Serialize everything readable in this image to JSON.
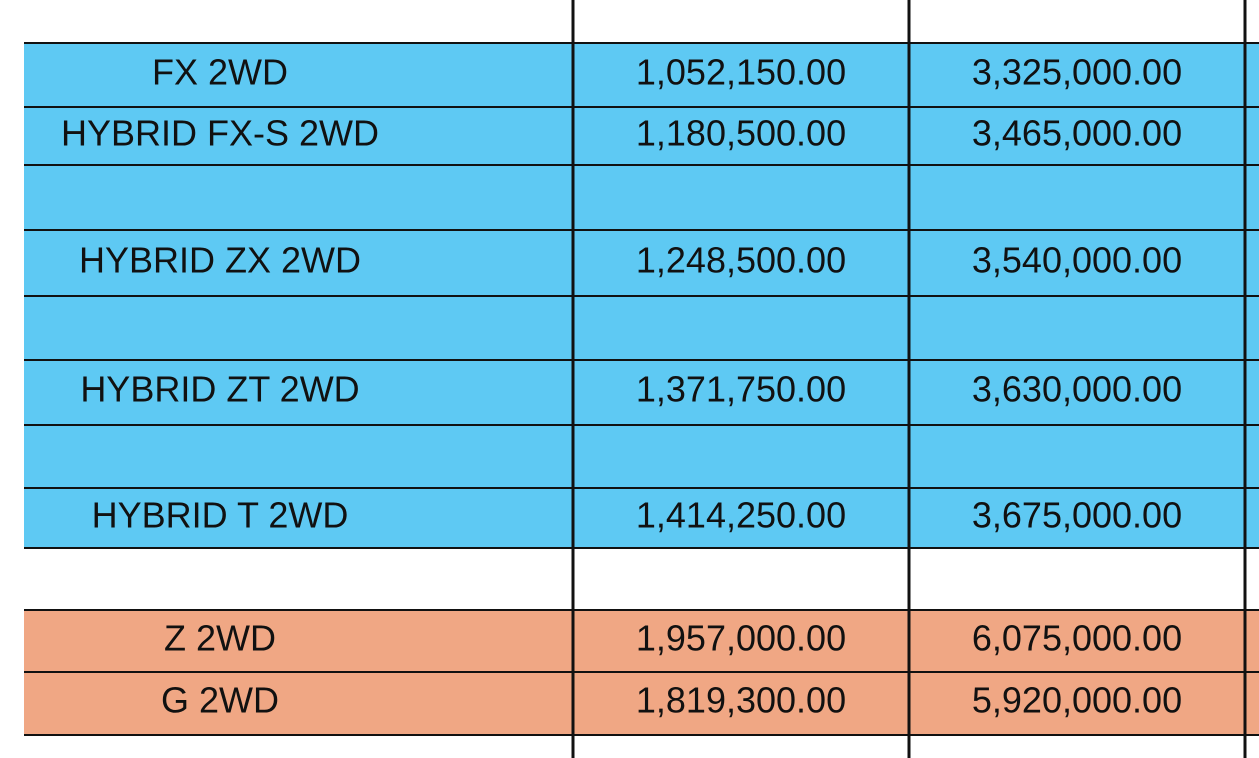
{
  "table": {
    "rows": [
      [
        "FX 2WD",
        "1,052,150.00",
        "3,325,000.00"
      ],
      [
        "HYBRID FX-S 2WD",
        "1,180,500.00",
        "3,465,000.00"
      ],
      [
        "HYBRID ZX 2WD",
        "1,248,500.00",
        "3,540,000.00"
      ],
      [
        "HYBRID ZT 2WD",
        "1,371,750.00",
        "3,630,000.00"
      ],
      [
        "HYBRID T 2WD",
        "1,414,250.00",
        "3,675,000.00"
      ],
      [
        "Z 2WD",
        "1,957,000.00",
        "6,075,000.00"
      ],
      [
        "G 2WD",
        "1,819,300.00",
        "5,920,000.00"
      ]
    ]
  }
}
